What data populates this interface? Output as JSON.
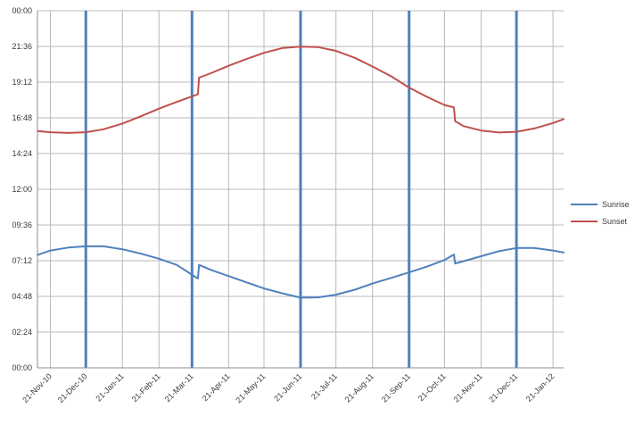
{
  "chart_data": {
    "type": "line",
    "title": "",
    "xlabel": "",
    "ylabel": "",
    "x_tick_labels": [
      "21-Nov-10",
      "21-Dec-10",
      "21-Jan-11",
      "21-Feb-11",
      "21-Mar-11",
      "21-Apr-11",
      "21-May-11",
      "21-Jun-11",
      "21-Jul-11",
      "21-Aug-11",
      "21-Sep-11",
      "21-Oct-11",
      "21-Nov-11",
      "21-Dec-11",
      "21-Jan-12"
    ],
    "y_tick_labels": [
      "00:00",
      "02:24",
      "04:48",
      "07:12",
      "09:36",
      "12:00",
      "14:24",
      "16:48",
      "19:12",
      "21:36",
      "00:00"
    ],
    "ylim_hours": [
      0,
      24
    ],
    "grid": true,
    "legend_position": "right",
    "vertical_markers": [
      "21-Dec-10",
      "21-Mar-11",
      "21-Jun-11",
      "21-Sep-11",
      "21-Dec-11"
    ],
    "series": [
      {
        "name": "Sunrise",
        "color": "#4f81bd",
        "x": [
          "2010-11-10",
          "2010-11-21",
          "2010-12-06",
          "2010-12-21",
          "2011-01-05",
          "2011-01-21",
          "2011-02-06",
          "2011-02-21",
          "2011-03-08",
          "2011-03-26",
          "2011-03-27",
          "2011-04-06",
          "2011-04-21",
          "2011-05-06",
          "2011-05-21",
          "2011-06-06",
          "2011-06-21",
          "2011-07-06",
          "2011-07-21",
          "2011-08-06",
          "2011-08-21",
          "2011-09-06",
          "2011-09-21",
          "2011-10-06",
          "2011-10-21",
          "2011-10-29",
          "2011-10-30",
          "2011-11-06",
          "2011-11-21",
          "2011-12-06",
          "2011-12-21",
          "2012-01-05",
          "2012-01-21",
          "2012-01-30"
        ],
        "y": [
          "07:35",
          "07:53",
          "08:05",
          "08:10",
          "08:10",
          "07:58",
          "07:40",
          "07:20",
          "06:55",
          "06:00",
          "06:55",
          "06:35",
          "06:10",
          "05:45",
          "05:20",
          "05:00",
          "04:43",
          "04:44",
          "04:55",
          "05:15",
          "05:40",
          "06:03",
          "06:25",
          "06:48",
          "07:15",
          "07:37",
          "07:01",
          "07:10",
          "07:30",
          "07:50",
          "08:03",
          "08:03",
          "07:53",
          "07:45"
        ]
      },
      {
        "name": "Sunset",
        "color": "#c0504d",
        "x": [
          "2010-11-10",
          "2010-11-21",
          "2010-12-06",
          "2010-12-21",
          "2011-01-05",
          "2011-01-21",
          "2011-02-06",
          "2011-02-21",
          "2011-03-08",
          "2011-03-26",
          "2011-03-27",
          "2011-04-06",
          "2011-04-21",
          "2011-05-06",
          "2011-05-21",
          "2011-06-06",
          "2011-06-21",
          "2011-07-06",
          "2011-07-21",
          "2011-08-06",
          "2011-08-21",
          "2011-09-06",
          "2011-09-21",
          "2011-10-06",
          "2011-10-21",
          "2011-10-29",
          "2011-10-30",
          "2011-11-06",
          "2011-11-21",
          "2011-12-06",
          "2011-12-21",
          "2012-01-05",
          "2012-01-21",
          "2012-01-30"
        ],
        "y": [
          "15:55",
          "15:50",
          "15:47",
          "15:50",
          "16:02",
          "16:25",
          "16:55",
          "17:25",
          "17:52",
          "18:23",
          "19:30",
          "19:48",
          "20:18",
          "20:45",
          "21:10",
          "21:30",
          "21:35",
          "21:33",
          "21:18",
          "20:50",
          "20:15",
          "19:35",
          "18:50",
          "18:13",
          "17:40",
          "17:30",
          "16:35",
          "16:15",
          "15:57",
          "15:49",
          "15:52",
          "16:05",
          "16:27",
          "16:43"
        ]
      }
    ]
  }
}
